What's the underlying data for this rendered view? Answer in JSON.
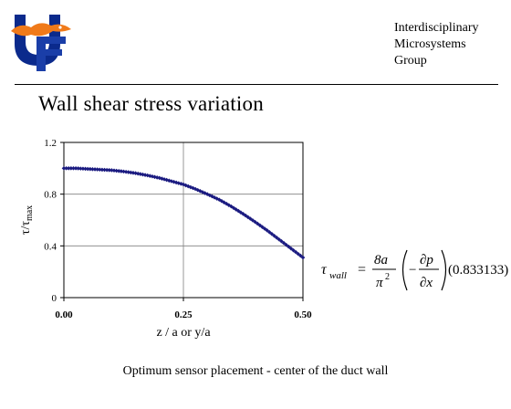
{
  "header": {
    "organization_lines": [
      "Interdisciplinary",
      "Microsystems",
      "Group"
    ]
  },
  "slide": {
    "title": "Wall shear stress variation",
    "caption": "Optimum sensor placement - center of the duct wall"
  },
  "equation": {
    "lhs_symbol": "τ",
    "lhs_subscript": "wall",
    "equals": "=",
    "numerator": "8a",
    "denominator_base": "π",
    "denominator_exp": "2",
    "paren_minus": "−",
    "dp": "∂p",
    "dx": "∂x",
    "coefficient": "(0.833133)"
  },
  "chart_data": {
    "type": "scatter",
    "title": "",
    "xlabel": "z / a or y/a",
    "ylabel_main": "τ/τ",
    "ylabel_sub": "max",
    "xlim": [
      0,
      0.5
    ],
    "ylim": [
      0,
      1.2
    ],
    "x_ticks": [
      "0.00",
      "0.25",
      "0.50"
    ],
    "y_ticks": [
      "0",
      "0.4",
      "0.8",
      "1.2"
    ],
    "grid": true,
    "marker_color": "#1a1a80",
    "series": [
      {
        "x": [
          0.0,
          0.025,
          0.05,
          0.075,
          0.1,
          0.125,
          0.15,
          0.175,
          0.2,
          0.225,
          0.25,
          0.275,
          0.3,
          0.325,
          0.35,
          0.375,
          0.4,
          0.425,
          0.45,
          0.475,
          0.5
        ],
        "y": [
          1.0,
          1.0,
          0.995,
          0.99,
          0.985,
          0.975,
          0.962,
          0.945,
          0.925,
          0.9,
          0.875,
          0.84,
          0.8,
          0.757,
          0.705,
          0.647,
          0.585,
          0.52,
          0.45,
          0.38,
          0.31
        ]
      }
    ]
  }
}
